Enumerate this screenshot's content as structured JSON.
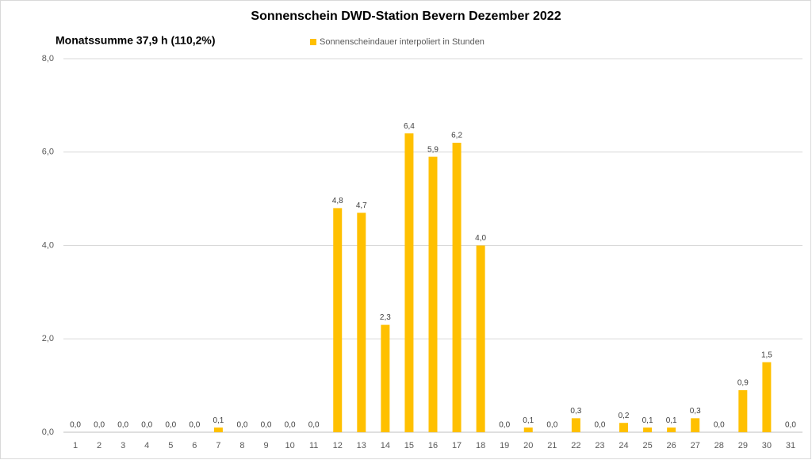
{
  "chart_data": {
    "type": "bar",
    "title": "Sonnenschein  DWD-Station  Bevern Dezember 2022",
    "annotation": "Monatssumme 37,9 h (110,2%)",
    "categories": [
      "1",
      "2",
      "3",
      "4",
      "5",
      "6",
      "7",
      "8",
      "9",
      "10",
      "11",
      "12",
      "13",
      "14",
      "15",
      "16",
      "17",
      "18",
      "19",
      "20",
      "21",
      "22",
      "23",
      "24",
      "25",
      "26",
      "27",
      "28",
      "29",
      "30",
      "31"
    ],
    "series": [
      {
        "name": "Sonnenscheindauer interpoliert in Stunden",
        "color": "#ffc000",
        "values": [
          0,
          0,
          0,
          0,
          0,
          0,
          0.1,
          0,
          0,
          0,
          0,
          4.8,
          4.7,
          2.3,
          6.4,
          5.9,
          6.2,
          4.0,
          0,
          0.1,
          0,
          0.3,
          0,
          0.2,
          0.1,
          0.1,
          0.3,
          0,
          0.9,
          1.5,
          0
        ],
        "value_labels": [
          "0,0",
          "0,0",
          "0,0",
          "0,0",
          "0,0",
          "0,0",
          "0,1",
          "0,0",
          "0,0",
          "0,0",
          "0,0",
          "4,8",
          "4,7",
          "2,3",
          "6,4",
          "5,9",
          "6,2",
          "4,0",
          "0,0",
          "0,1",
          "0,0",
          "0,3",
          "0,0",
          "0,2",
          "0,1",
          "0,1",
          "0,3",
          "0,0",
          "0,9",
          "1,5",
          "0,0"
        ]
      }
    ],
    "ylim": [
      0,
      8
    ],
    "yticks": [
      {
        "value": 0,
        "label": "0,0"
      },
      {
        "value": 2,
        "label": "2,0"
      },
      {
        "value": 4,
        "label": "4,0"
      },
      {
        "value": 6,
        "label": "6,0"
      },
      {
        "value": 8,
        "label": "8,0"
      }
    ],
    "grid": true,
    "legend": "top"
  }
}
